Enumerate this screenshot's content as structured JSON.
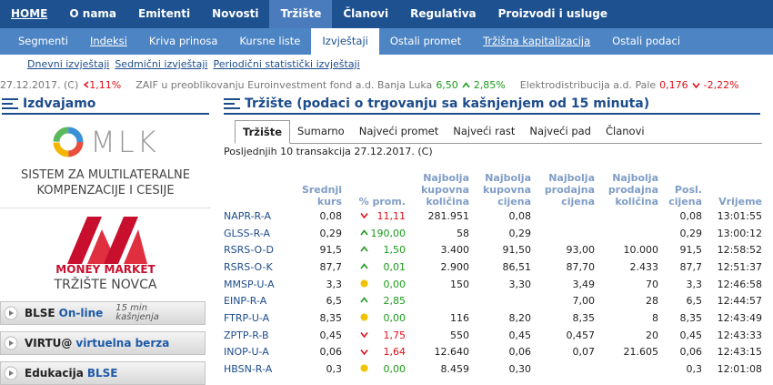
{
  "nav": {
    "main": [
      "HOME",
      "O nama",
      "Emitenti",
      "Novosti",
      "Tržište",
      "Članovi",
      "Regulativa",
      "Proizvodi i usluge"
    ],
    "main_active": 4,
    "sub": [
      "Segmenti",
      "Indeksi",
      "Kriva prinosa",
      "Kursne liste",
      "Izvještaji",
      "Ostali promet",
      "Tržišna kapitalizacija",
      "Ostali podaci"
    ],
    "sub_active": 4,
    "reports": [
      "Dnevni izvještaji",
      "Sedmični izvještaji",
      "Periodični statistički izvještaji"
    ]
  },
  "ticker": {
    "date": "27.12.2017. (C)",
    "index_change": "1,11%",
    "items": [
      {
        "name": "ZAIF u preoblikovanju Euroinvestment fond a.d. Banja Luka",
        "price": "6,50",
        "change": "2,85%",
        "dir": "up"
      },
      {
        "name": "Elektrodistribucija a.d. Pale",
        "price": "0,176",
        "change": "-2,22%",
        "dir": "down"
      }
    ]
  },
  "sidebar": {
    "title": "Izdvajamo",
    "mlk": {
      "logo": "MLK",
      "caption": "SISTEM ZA MULTILATERALNE KOMPENZACIJE I CESIJE"
    },
    "money_market": {
      "logo": "MONEY MARKET",
      "caption": "TRŽIŠTE NOVCA"
    },
    "buttons": [
      {
        "label": "BLSE",
        "accent": "On-line",
        "note": "15 min kašnjenja"
      },
      {
        "label": "VIRTU@",
        "accent": "virtuelna berza"
      },
      {
        "label": "Edukacija",
        "accent": "BLSE"
      }
    ]
  },
  "market": {
    "title": "Tržište (podaci o trgovanju sa kašnjenjem od 15 minuta)",
    "tabs": [
      "Tržište",
      "Sumarno",
      "Najveći promet",
      "Najveći rast",
      "Najveći pad",
      "Članovi"
    ],
    "active_tab": 0,
    "caption": "Posljednjih 10 transakcija 27.12.2017. (C)",
    "columns": [
      "Srednji kurs",
      "% prom.",
      "Najbolja kupovna količina",
      "Najbolja kupovna cijena",
      "Najbolja prodajna cijena",
      "Najbolja prodajna količina",
      "Posl. cijena",
      "Vrijeme"
    ],
    "rows": [
      {
        "symbol": "NAPR-R-A",
        "avg": "0,08",
        "dir": "down",
        "change": "11,11",
        "bid_qty": "281.951",
        "bid": "0,08",
        "ask": null,
        "ask_qty": null,
        "last": "0,08",
        "time": "13:01:55"
      },
      {
        "symbol": "GLSS-R-A",
        "avg": "0,29",
        "dir": "up",
        "change": "190,00",
        "bid_qty": "58",
        "bid": "0,29",
        "ask": null,
        "ask_qty": null,
        "last": "0,29",
        "time": "13:00:12"
      },
      {
        "symbol": "RSRS-O-D",
        "avg": "91,5",
        "dir": "up",
        "change": "1,50",
        "bid_qty": "3.400",
        "bid": "91,50",
        "ask": "93,00",
        "ask_qty": "10.000",
        "last": "91,5",
        "time": "12:58:52"
      },
      {
        "symbol": "RSRS-O-K",
        "avg": "87,7",
        "dir": "up",
        "change": "0,01",
        "bid_qty": "2.900",
        "bid": "86,51",
        "ask": "87,70",
        "ask_qty": "2.433",
        "last": "87,7",
        "time": "12:51:37"
      },
      {
        "symbol": "MMSP-U-A",
        "avg": "3,3",
        "dir": "flat",
        "change": "0,00",
        "bid_qty": "150",
        "bid": "3,30",
        "ask": "3,49",
        "ask_qty": "70",
        "last": "3,3",
        "time": "12:46:58"
      },
      {
        "symbol": "EINP-R-A",
        "avg": "6,5",
        "dir": "up",
        "change": "2,85",
        "bid_qty": null,
        "bid": null,
        "ask": "7,00",
        "ask_qty": "28",
        "last": "6,5",
        "time": "12:44:57"
      },
      {
        "symbol": "FTRP-U-A",
        "avg": "8,35",
        "dir": "flat",
        "change": "0,00",
        "bid_qty": "116",
        "bid": "8,20",
        "ask": "8,35",
        "ask_qty": "8",
        "last": "8,35",
        "time": "12:43:49"
      },
      {
        "symbol": "ZPTP-R-B",
        "avg": "0,45",
        "dir": "down",
        "change": "1,75",
        "bid_qty": "550",
        "bid": "0,45",
        "ask": "0,457",
        "ask_qty": "20",
        "last": "0,45",
        "time": "12:43:33"
      },
      {
        "symbol": "INOP-U-A",
        "avg": "0,06",
        "dir": "down",
        "change": "1,64",
        "bid_qty": "12.640",
        "bid": "0,06",
        "ask": "0,07",
        "ask_qty": "21.605",
        "last": "0,06",
        "time": "12:43:15"
      },
      {
        "symbol": "HBSN-R-A",
        "avg": "0,3",
        "dir": "flat",
        "change": "0,00",
        "bid_qty": "8.459",
        "bid": "0,30",
        "ask": null,
        "ask_qty": null,
        "last": "0,3",
        "time": "12:01:08"
      }
    ]
  }
}
